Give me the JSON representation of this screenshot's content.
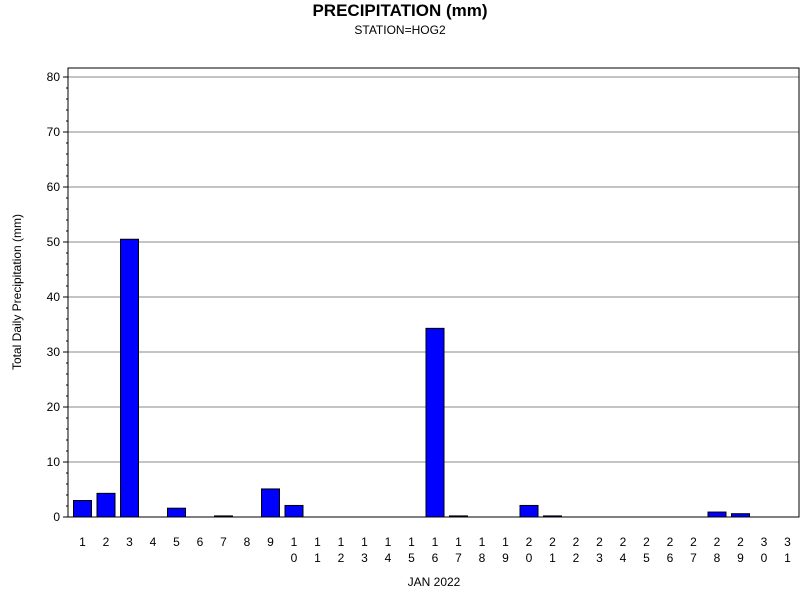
{
  "chart_data": {
    "type": "bar",
    "title": "PRECIPITATION (mm)",
    "subtitle": "STATION=HOG2",
    "xlabel": "JAN 2022",
    "ylabel": "Total Daily Precipitation (mm)",
    "ylim": [
      0,
      80
    ],
    "yticks": [
      0,
      10,
      20,
      30,
      40,
      50,
      60,
      70,
      80
    ],
    "grid": true,
    "categories": [
      "1",
      "2",
      "3",
      "4",
      "5",
      "6",
      "7",
      "8",
      "9",
      "10",
      "11",
      "12",
      "13",
      "14",
      "15",
      "16",
      "17",
      "18",
      "19",
      "20",
      "21",
      "22",
      "23",
      "24",
      "25",
      "26",
      "27",
      "28",
      "29",
      "30",
      "31"
    ],
    "values": [
      3.0,
      4.3,
      50.5,
      0,
      1.6,
      0,
      0.2,
      0,
      5.1,
      2.1,
      0,
      0,
      0,
      0,
      0,
      34.3,
      0.2,
      0,
      0,
      2.1,
      0.2,
      0,
      0,
      0,
      0,
      0,
      0,
      0.9,
      0.6,
      0,
      0
    ],
    "bar_color": "#0000ff"
  }
}
